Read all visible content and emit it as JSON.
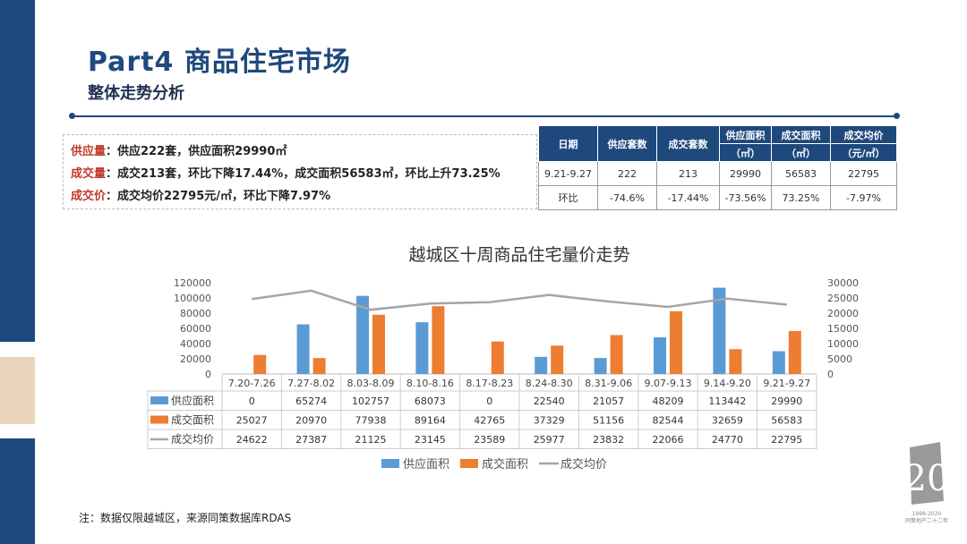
{
  "header": {
    "title": "Part4 商品住宅市场",
    "subtitle": "整体走势分析"
  },
  "summary": [
    {
      "label": "供应量",
      "text": "：供应222套，供应面积29990㎡"
    },
    {
      "label": "成交量",
      "text": "：成交213套，环比下降17.44%，成交面积56583㎡，环比上升73.25%"
    },
    {
      "label": "成交价",
      "text": "：成交均价22795元/㎡，环比下降7.97%"
    }
  ],
  "key_table": {
    "headers": [
      "日期",
      "供应套数",
      "成交套数",
      "供应面积",
      "成交面积",
      "成交均价"
    ],
    "units": [
      "（㎡）",
      "（㎡）",
      "（元/㎡）"
    ],
    "rows": [
      [
        "9.21-9.27",
        "222",
        "213",
        "29990",
        "56583",
        "22795"
      ],
      [
        "环比",
        "-74.6%",
        "-17.44%",
        "-73.56%",
        "73.25%",
        "-7.97%"
      ]
    ]
  },
  "chart_data": {
    "type": "bar",
    "title": "越城区十周商品住宅量价走势",
    "categories": [
      "7.20-7.26",
      "7.27-8.02",
      "8.03-8.09",
      "8.10-8.16",
      "8.17-8.23",
      "8.24-8.30",
      "8.31-9.06",
      "9.07-9.13",
      "9.14-9.20",
      "9.21-9.27"
    ],
    "series": [
      {
        "name": "供应面积",
        "type": "bar",
        "axis": "left",
        "color": "#5b9bd5",
        "values": [
          0,
          65274,
          102757,
          68073,
          0,
          22540,
          21057,
          48209,
          113442,
          29990
        ]
      },
      {
        "name": "成交面积",
        "type": "bar",
        "axis": "left",
        "color": "#ed7d31",
        "values": [
          25027,
          20970,
          77938,
          89164,
          42765,
          37329,
          51156,
          82544,
          32659,
          56583
        ]
      },
      {
        "name": "成交均价",
        "type": "line",
        "axis": "right",
        "color": "#a5a5a5",
        "values": [
          24622,
          27387,
          21125,
          23145,
          23589,
          25977,
          23832,
          22066,
          24770,
          22795
        ]
      }
    ],
    "ylim_left": [
      0,
      120000
    ],
    "yticks_left": [
      0,
      20000,
      40000,
      60000,
      80000,
      100000,
      120000
    ],
    "ylim_right": [
      0,
      30000
    ],
    "yticks_right": [
      0,
      5000,
      10000,
      15000,
      20000,
      25000,
      30000
    ],
    "legend": "bottom",
    "data_table": true
  },
  "note": "注：数据仅限越城区，来源同策数据库RDAS",
  "logo_text": "1998-2020 同策地产二十二年"
}
